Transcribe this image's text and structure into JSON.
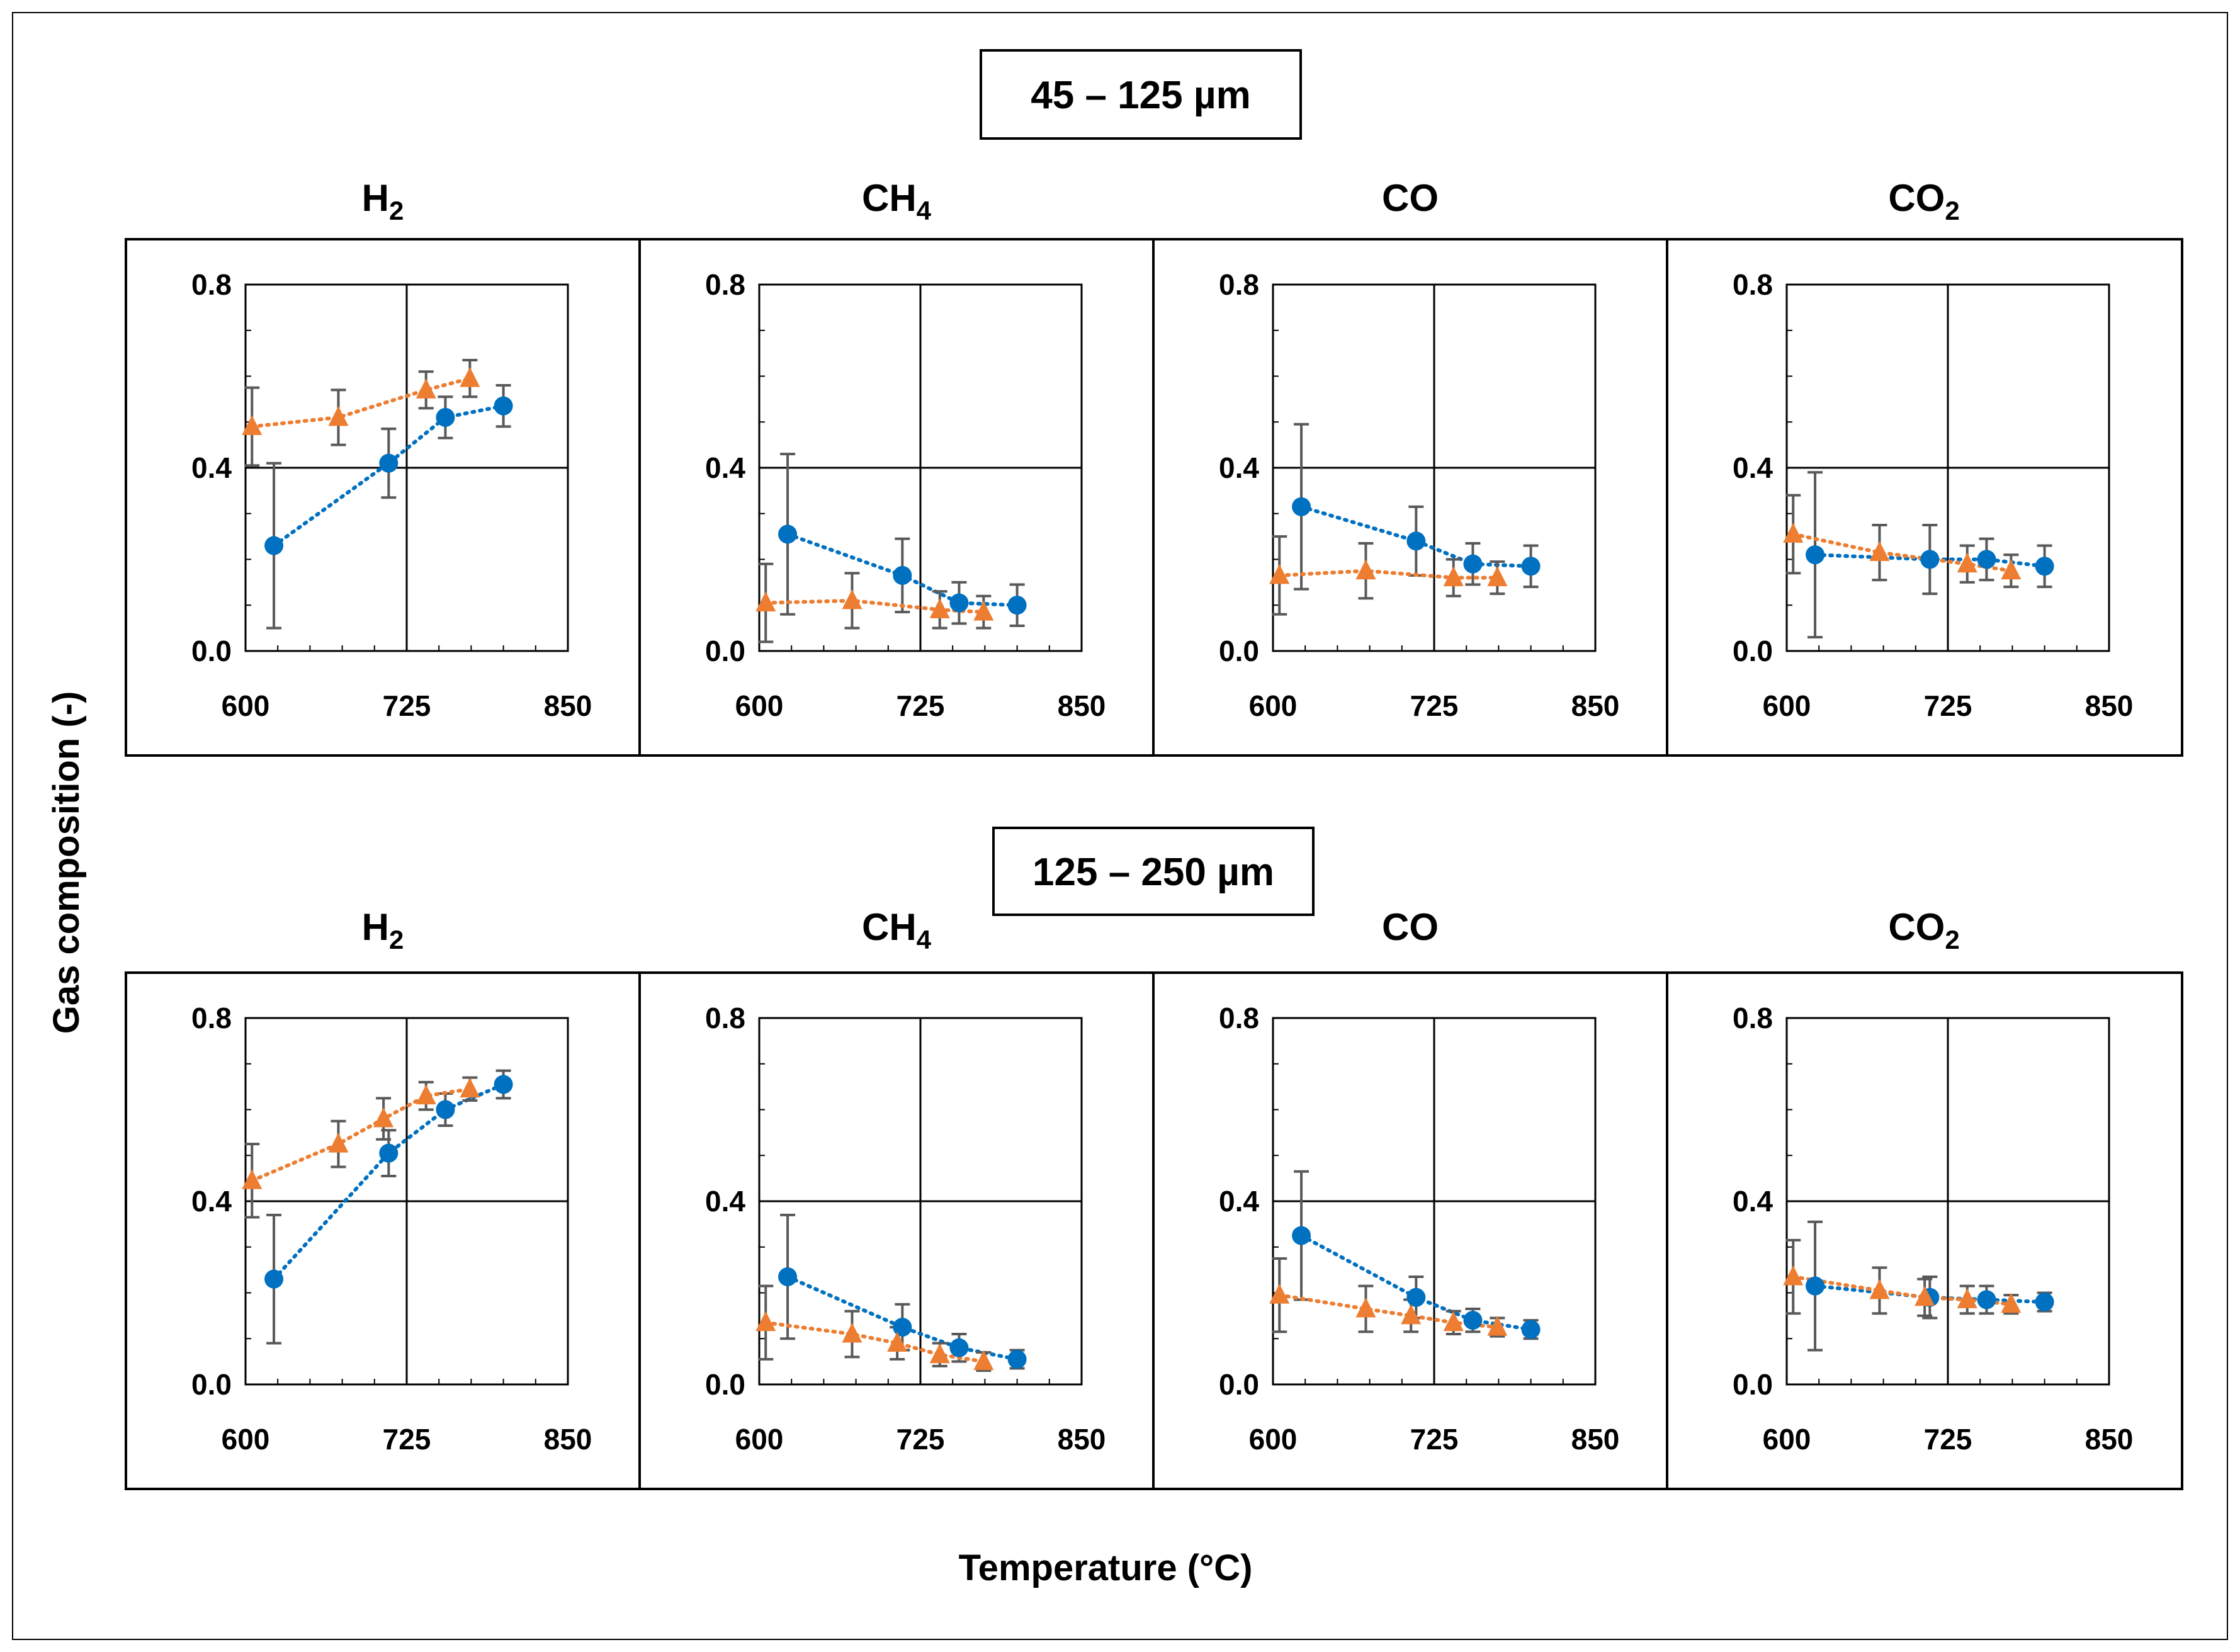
{
  "ylabel": "Gas composition (-)",
  "xlabel": "Temperature (°C)",
  "colors": {
    "series_a": "#0070C0",
    "series_b": "#ED7D31",
    "error": "#595959"
  },
  "x_ticks": [
    "600",
    "725",
    "850"
  ],
  "y_ticks": [
    "0.0",
    "0.4",
    "0.8"
  ],
  "xlim": [
    600,
    850
  ],
  "ylim": [
    0,
    0.8
  ],
  "groups": [
    {
      "title": "45 – 125 µm"
    },
    {
      "title": "125 – 250 µm"
    }
  ],
  "gas_titles": [
    {
      "main": "H",
      "sub": "2"
    },
    {
      "main": "CH",
      "sub": "4"
    },
    {
      "main": "CO",
      "sub": ""
    },
    {
      "main": "CO",
      "sub": "2"
    }
  ],
  "chart_data": [
    {
      "type": "scatter",
      "group": "45 – 125 µm",
      "gas": "H2",
      "xlim": [
        600,
        850
      ],
      "ylim": [
        0,
        0.8
      ],
      "xticks": [
        600,
        725,
        850
      ],
      "yticks": [
        0,
        0.4,
        0.8
      ],
      "series": [
        {
          "name": "series A (circles)",
          "marker": "circle",
          "x": [
            622,
            711,
            755,
            800
          ],
          "y": [
            0.23,
            0.41,
            0.51,
            0.535
          ],
          "err": [
            0.18,
            0.075,
            0.045,
            0.045
          ]
        },
        {
          "name": "series B (triangles)",
          "marker": "triangle",
          "x": [
            605,
            672,
            740,
            774
          ],
          "y": [
            0.49,
            0.51,
            0.57,
            0.595
          ],
          "err": [
            0.085,
            0.06,
            0.04,
            0.04
          ]
        }
      ]
    },
    {
      "type": "scatter",
      "group": "45 – 125 µm",
      "gas": "CH4",
      "xlim": [
        600,
        850
      ],
      "ylim": [
        0,
        0.8
      ],
      "xticks": [
        600,
        725,
        850
      ],
      "yticks": [
        0,
        0.4,
        0.8
      ],
      "series": [
        {
          "name": "series A (circles)",
          "marker": "circle",
          "x": [
            622,
            711,
            755,
            800
          ],
          "y": [
            0.255,
            0.165,
            0.105,
            0.1
          ],
          "err": [
            0.175,
            0.08,
            0.045,
            0.045
          ]
        },
        {
          "name": "series B (triangles)",
          "marker": "triangle",
          "x": [
            605,
            672,
            740,
            774
          ],
          "y": [
            0.105,
            0.11,
            0.09,
            0.085
          ],
          "err": [
            0.085,
            0.06,
            0.04,
            0.035
          ]
        }
      ]
    },
    {
      "type": "scatter",
      "group": "45 – 125 µm",
      "gas": "CO",
      "xlim": [
        600,
        850
      ],
      "ylim": [
        0,
        0.8
      ],
      "xticks": [
        600,
        725,
        850
      ],
      "yticks": [
        0,
        0.4,
        0.8
      ],
      "series": [
        {
          "name": "series A (circles)",
          "marker": "circle",
          "x": [
            622,
            711,
            755,
            800
          ],
          "y": [
            0.315,
            0.24,
            0.19,
            0.185
          ],
          "err": [
            0.18,
            0.075,
            0.045,
            0.045
          ]
        },
        {
          "name": "series B (triangles)",
          "marker": "triangle",
          "x": [
            605,
            672,
            740,
            774
          ],
          "y": [
            0.165,
            0.175,
            0.16,
            0.16
          ],
          "err": [
            0.085,
            0.06,
            0.04,
            0.035
          ]
        }
      ]
    },
    {
      "type": "scatter",
      "group": "45 – 125 µm",
      "gas": "CO2",
      "xlim": [
        600,
        850
      ],
      "ylim": [
        0,
        0.8
      ],
      "xticks": [
        600,
        725,
        850
      ],
      "yticks": [
        0,
        0.4,
        0.8
      ],
      "series": [
        {
          "name": "series A (circles)",
          "marker": "circle",
          "x": [
            622,
            711,
            755,
            800
          ],
          "y": [
            0.21,
            0.2,
            0.2,
            0.185
          ],
          "err": [
            0.18,
            0.075,
            0.045,
            0.045
          ]
        },
        {
          "name": "series B (triangles)",
          "marker": "triangle",
          "x": [
            605,
            672,
            740,
            774
          ],
          "y": [
            0.255,
            0.215,
            0.19,
            0.175
          ],
          "err": [
            0.085,
            0.06,
            0.04,
            0.035
          ]
        }
      ]
    },
    {
      "type": "scatter",
      "group": "125 – 250 µm",
      "gas": "H2",
      "xlim": [
        600,
        850
      ],
      "ylim": [
        0,
        0.8
      ],
      "xticks": [
        600,
        725,
        850
      ],
      "yticks": [
        0,
        0.4,
        0.8
      ],
      "series": [
        {
          "name": "series A (circles)",
          "marker": "circle",
          "x": [
            622,
            711,
            755,
            800
          ],
          "y": [
            0.23,
            0.505,
            0.6,
            0.655
          ],
          "err": [
            0.14,
            0.05,
            0.035,
            0.03
          ]
        },
        {
          "name": "series B (triangles)",
          "marker": "triangle",
          "x": [
            605,
            672,
            707,
            740,
            774
          ],
          "y": [
            0.445,
            0.525,
            0.58,
            0.63,
            0.645
          ],
          "err": [
            0.08,
            0.05,
            0.045,
            0.03,
            0.025
          ]
        }
      ]
    },
    {
      "type": "scatter",
      "group": "125 – 250 µm",
      "gas": "CH4",
      "xlim": [
        600,
        850
      ],
      "ylim": [
        0,
        0.8
      ],
      "xticks": [
        600,
        725,
        850
      ],
      "yticks": [
        0,
        0.4,
        0.8
      ],
      "series": [
        {
          "name": "series A (circles)",
          "marker": "circle",
          "x": [
            622,
            711,
            755,
            800
          ],
          "y": [
            0.235,
            0.125,
            0.08,
            0.055
          ],
          "err": [
            0.135,
            0.05,
            0.03,
            0.02
          ]
        },
        {
          "name": "series B (triangles)",
          "marker": "triangle",
          "x": [
            605,
            672,
            707,
            740,
            774
          ],
          "y": [
            0.135,
            0.11,
            0.09,
            0.065,
            0.05
          ],
          "err": [
            0.08,
            0.05,
            0.035,
            0.025,
            0.02
          ]
        }
      ]
    },
    {
      "type": "scatter",
      "group": "125 – 250 µm",
      "gas": "CO",
      "xlim": [
        600,
        850
      ],
      "ylim": [
        0,
        0.8
      ],
      "xticks": [
        600,
        725,
        850
      ],
      "yticks": [
        0,
        0.4,
        0.8
      ],
      "series": [
        {
          "name": "series A (circles)",
          "marker": "circle",
          "x": [
            622,
            711,
            755,
            800
          ],
          "y": [
            0.325,
            0.19,
            0.14,
            0.12
          ],
          "err": [
            0.14,
            0.045,
            0.025,
            0.02
          ]
        },
        {
          "name": "series B (triangles)",
          "marker": "triangle",
          "x": [
            605,
            672,
            707,
            740,
            774
          ],
          "y": [
            0.195,
            0.165,
            0.15,
            0.135,
            0.125
          ],
          "err": [
            0.08,
            0.05,
            0.035,
            0.025,
            0.02
          ]
        }
      ]
    },
    {
      "type": "scatter",
      "group": "125 – 250 µm",
      "gas": "CO2",
      "xlim": [
        600,
        850
      ],
      "ylim": [
        0,
        0.8
      ],
      "xticks": [
        600,
        725,
        850
      ],
      "yticks": [
        0,
        0.4,
        0.8
      ],
      "series": [
        {
          "name": "series A (circles)",
          "marker": "circle",
          "x": [
            622,
            711,
            755,
            800
          ],
          "y": [
            0.215,
            0.19,
            0.185,
            0.18
          ],
          "err": [
            0.14,
            0.045,
            0.03,
            0.02
          ]
        },
        {
          "name": "series B (triangles)",
          "marker": "triangle",
          "x": [
            605,
            672,
            707,
            740,
            774
          ],
          "y": [
            0.235,
            0.205,
            0.19,
            0.185,
            0.175
          ],
          "err": [
            0.08,
            0.05,
            0.04,
            0.03,
            0.02
          ]
        }
      ]
    }
  ]
}
